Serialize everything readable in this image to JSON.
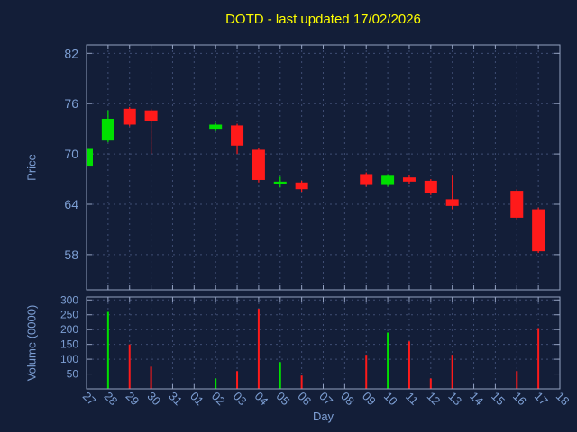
{
  "colors": {
    "background": "#131e38",
    "title": "#ffff00",
    "axis_text": "#7d9fd4",
    "frame": "#93a1c0",
    "grid": "#3f4d73",
    "up": "#00e000",
    "down": "#ff1a1a"
  },
  "chart_data": {
    "type": "candlestick",
    "title": "DOTD - last updated 17/02/2026",
    "xlabel": "Day",
    "legend": "none",
    "grid": "dashed",
    "price_axis": {
      "label": "Price",
      "ticks": [
        82,
        76,
        70,
        64,
        58
      ],
      "range": [
        53.8,
        83.0
      ]
    },
    "volume_axis": {
      "label": "Volume (0000)",
      "ticks": [
        300,
        250,
        200,
        150,
        100,
        50
      ],
      "range": [
        0,
        310
      ]
    },
    "x_ticks": [
      "27",
      "28",
      "29",
      "30",
      "31",
      "01",
      "02",
      "03",
      "04",
      "05",
      "06",
      "07",
      "08",
      "09",
      "10",
      "11",
      "12",
      "13",
      "14",
      "15",
      "16",
      "17",
      "18"
    ],
    "candles": [
      {
        "day": "27",
        "open": 68.5,
        "high": 70.9,
        "low": 68.2,
        "close": 70.6,
        "volume": 40
      },
      {
        "day": "28",
        "open": 71.6,
        "high": 75.2,
        "low": 71.4,
        "close": 74.2,
        "volume": 260
      },
      {
        "day": "29",
        "open": 75.4,
        "high": 75.6,
        "low": 73.3,
        "close": 73.5,
        "volume": 150
      },
      {
        "day": "30",
        "open": 75.2,
        "high": 75.4,
        "low": 70.0,
        "close": 73.9,
        "volume": 75
      },
      {
        "day": "02",
        "open": 73.0,
        "high": 73.7,
        "low": 72.7,
        "close": 73.5,
        "volume": 35
      },
      {
        "day": "03",
        "open": 73.4,
        "high": 73.6,
        "low": 70.0,
        "close": 71.0,
        "volume": 60
      },
      {
        "day": "04",
        "open": 70.5,
        "high": 70.7,
        "low": 66.6,
        "close": 66.9,
        "volume": 270
      },
      {
        "day": "05",
        "open": 66.4,
        "high": 67.3,
        "low": 66.0,
        "close": 66.7,
        "volume": 90
      },
      {
        "day": "06",
        "open": 66.6,
        "high": 66.8,
        "low": 65.5,
        "close": 65.8,
        "volume": 45
      },
      {
        "day": "09",
        "open": 67.6,
        "high": 67.8,
        "low": 66.1,
        "close": 66.3,
        "volume": 115
      },
      {
        "day": "10",
        "open": 66.3,
        "high": 67.6,
        "low": 66.1,
        "close": 67.4,
        "volume": 190
      },
      {
        "day": "11",
        "open": 67.2,
        "high": 67.5,
        "low": 66.4,
        "close": 66.7,
        "volume": 160
      },
      {
        "day": "12",
        "open": 66.8,
        "high": 67.0,
        "low": 65.1,
        "close": 65.3,
        "volume": 35
      },
      {
        "day": "13",
        "open": 64.6,
        "high": 67.4,
        "low": 63.4,
        "close": 63.8,
        "volume": 115
      },
      {
        "day": "16",
        "open": 65.6,
        "high": 65.8,
        "low": 62.2,
        "close": 62.4,
        "volume": 60
      },
      {
        "day": "17",
        "open": 63.4,
        "high": 63.6,
        "low": 58.2,
        "close": 58.4,
        "volume": 205
      }
    ]
  }
}
